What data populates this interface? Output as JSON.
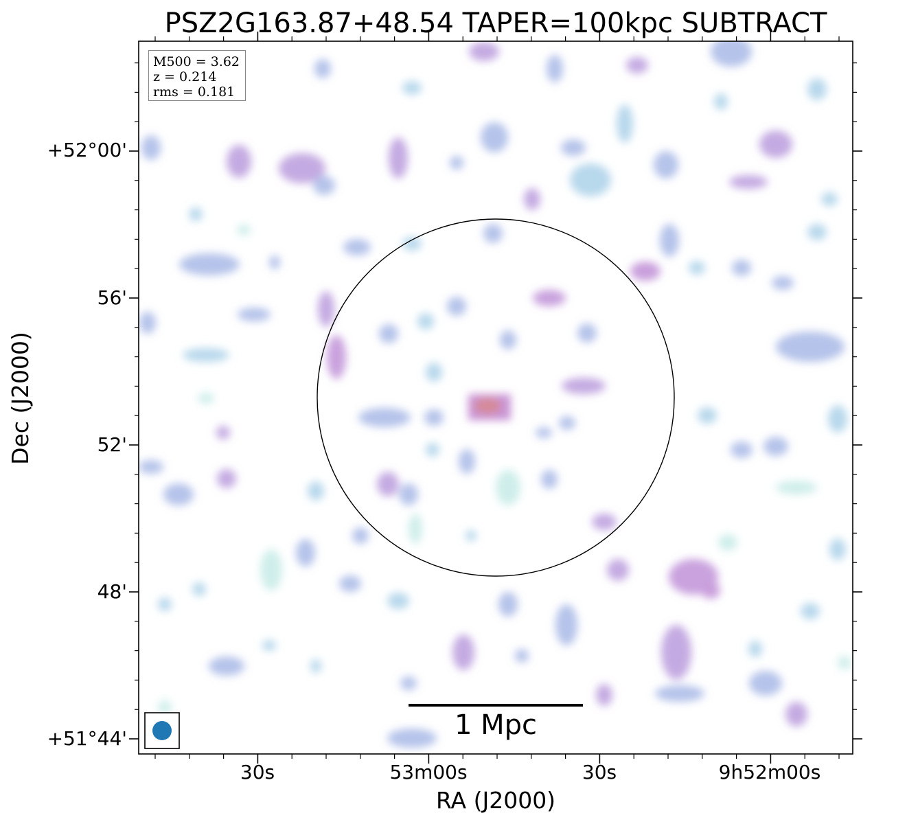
{
  "title": "PSZ2G163.87+48.54 TAPER=100kpc SUBTRACT",
  "axes": {
    "xlabel": "RA (J2000)",
    "ylabel": "Dec (J2000)",
    "x_ticks": [
      "30s",
      "53m00s",
      "30s",
      "9h52m00s"
    ],
    "y_ticks": [
      "+52°00'",
      "56'",
      "52'",
      "48'",
      "+51°44'"
    ]
  },
  "info": {
    "m500": "M500 = 3.62",
    "z": "z = 0.214",
    "rms": "rms = 0.181"
  },
  "scale_bar": {
    "label": "1 Mpc"
  },
  "colors": {
    "faint": "#cfeeea",
    "low": "#b8d8ec",
    "mid": "#b5c3ea",
    "high": "#c9a2de",
    "peak": "#d08a9a",
    "beam": "#1f77b4",
    "frame": "#000000"
  }
}
